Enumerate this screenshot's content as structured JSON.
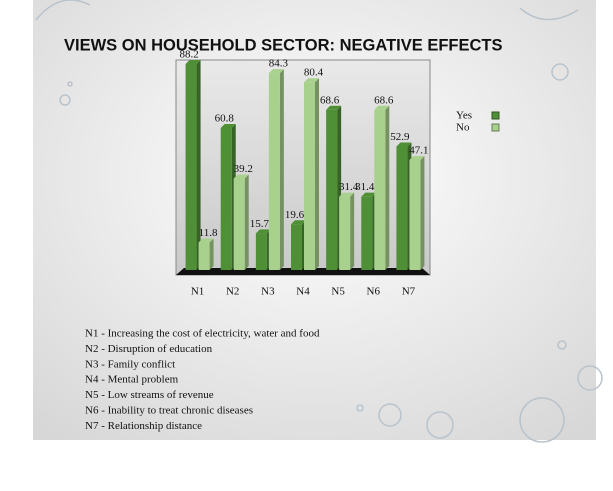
{
  "chart_data": {
    "type": "bar",
    "title": "VIEWS ON HOUSEHOLD SECTOR: NEGATIVE EFFECTS",
    "categories": [
      "N1",
      "N2",
      "N3",
      "N4",
      "N5",
      "N6",
      "N7"
    ],
    "series": [
      {
        "name": "Yes",
        "color": "#4f8f36",
        "values": [
          88.2,
          60.8,
          15.7,
          19.6,
          68.6,
          31.4,
          52.9
        ]
      },
      {
        "name": "No",
        "color": "#a9d18e",
        "values": [
          11.8,
          39.2,
          84.3,
          80.4,
          31.4,
          68.6,
          47.1
        ]
      }
    ],
    "legend": "right",
    "annotations": [
      "N1 - Increasing the cost of electricity, water and food",
      "N2 - Disruption of education",
      "N3 - Family conflict",
      "N4 - Mental problem",
      "N5 - Low streams of revenue",
      "N6 - Inability to treat chronic diseases",
      "N7 - Relationship distance"
    ]
  }
}
